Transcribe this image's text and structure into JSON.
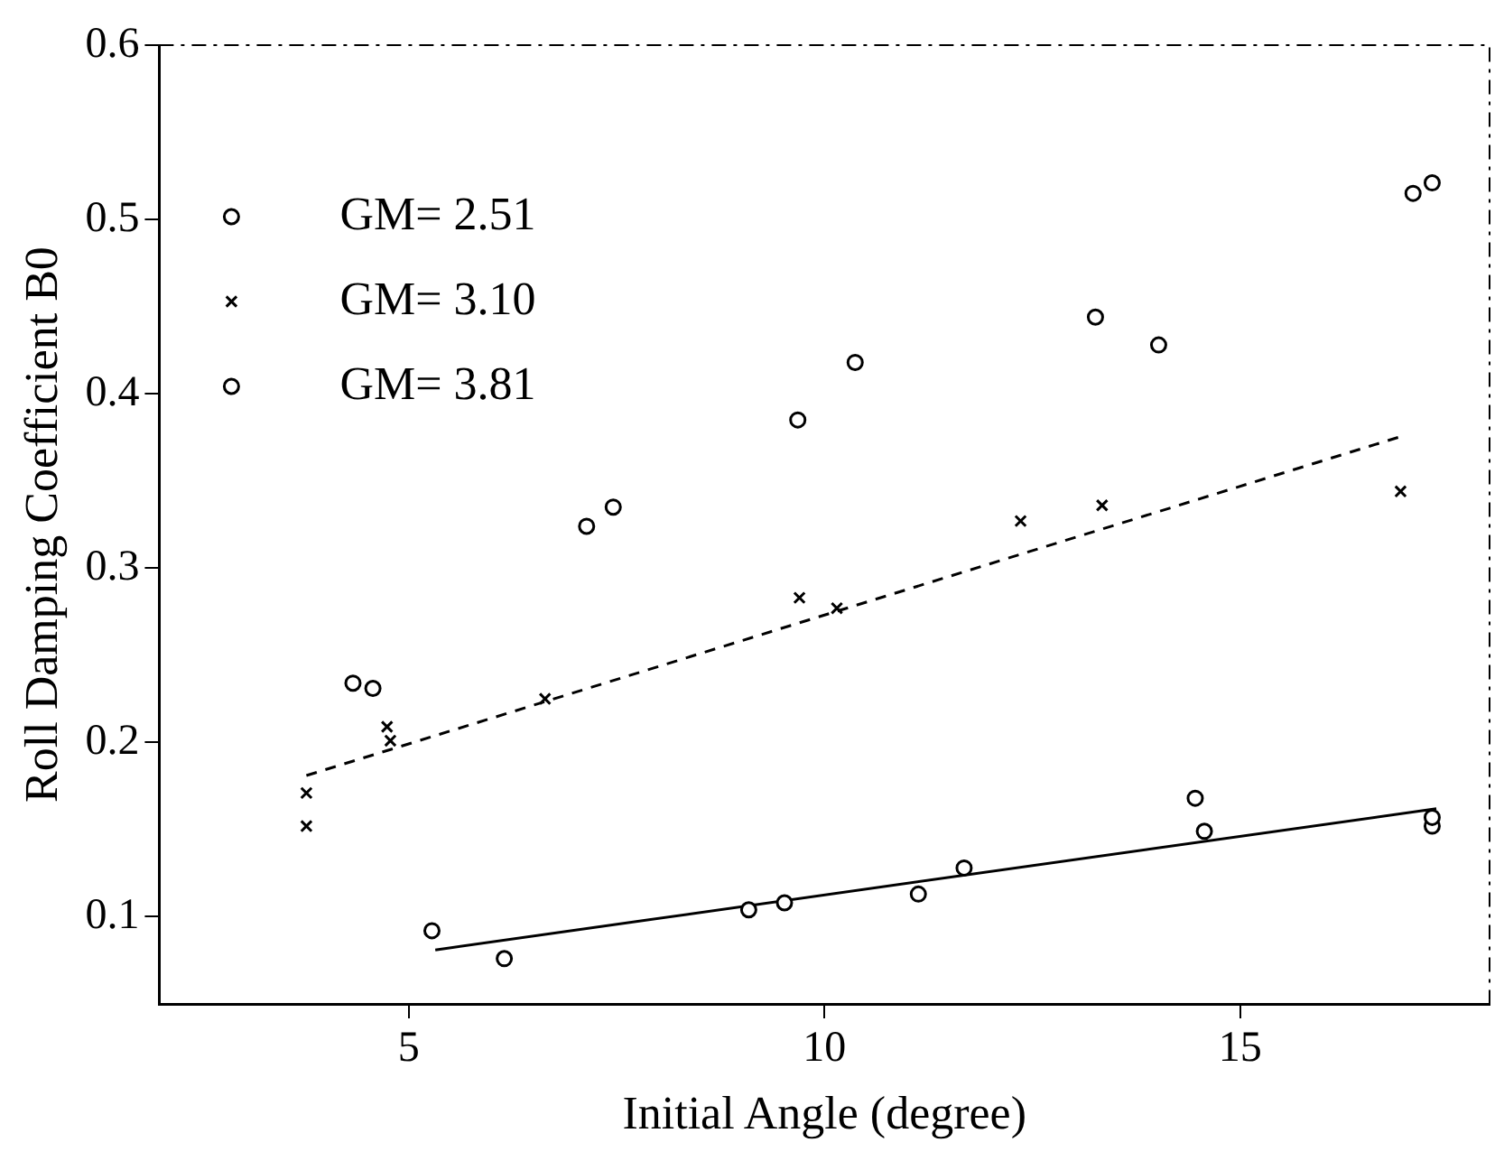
{
  "chart_data": {
    "type": "scatter",
    "xlabel": "Initial Angle (degree)",
    "ylabel": "Roll Damping Coefficient B0",
    "xlim": [
      2,
      18
    ],
    "xticks": [
      5,
      10,
      15
    ],
    "ylim": [
      0.05,
      0.6
    ],
    "yticks": [
      0.1,
      0.2,
      0.3,
      0.4,
      0.5,
      0.6
    ],
    "grid": false,
    "legend": "top left",
    "series": [
      {
        "name": "GM= 2.51",
        "color": "#000000",
        "marker": "circle",
        "x": [
          4.33,
          4.57,
          7.14,
          7.46,
          9.68,
          10.37,
          13.26,
          14.02,
          17.08,
          17.31
        ],
        "values": [
          0.234,
          0.231,
          0.324,
          0.335,
          0.385,
          0.418,
          0.444,
          0.428,
          0.515,
          0.521
        ]
      },
      {
        "name": "GM= 3.10",
        "color": "#000000",
        "marker": "cross",
        "x": [
          3.77,
          3.77,
          4.74,
          4.78,
          6.64,
          9.7,
          10.15,
          12.36,
          13.34,
          16.93
        ],
        "values": [
          0.171,
          0.152,
          0.209,
          0.201,
          0.225,
          0.283,
          0.277,
          0.327,
          0.336,
          0.344
        ]
      },
      {
        "name": "GM= 3.81",
        "color": "#000000",
        "marker": "circle",
        "x": [
          5.28,
          6.15,
          9.09,
          9.52,
          11.13,
          11.68,
          14.46,
          14.57,
          17.31,
          17.31
        ],
        "values": [
          0.092,
          0.076,
          0.104,
          0.108,
          0.113,
          0.128,
          0.168,
          0.149,
          0.152,
          0.157
        ]
      },
      {
        "type": "line",
        "color": "#000000",
        "marker": "none",
        "line_style": "dashed",
        "x": [
          3.77,
          16.9
        ],
        "values": [
          0.181,
          0.375
        ]
      },
      {
        "type": "line",
        "color": "#000000",
        "marker": "none",
        "line_style": "solid",
        "x": [
          5.32,
          17.36
        ],
        "values": [
          0.081,
          0.162
        ]
      }
    ]
  }
}
